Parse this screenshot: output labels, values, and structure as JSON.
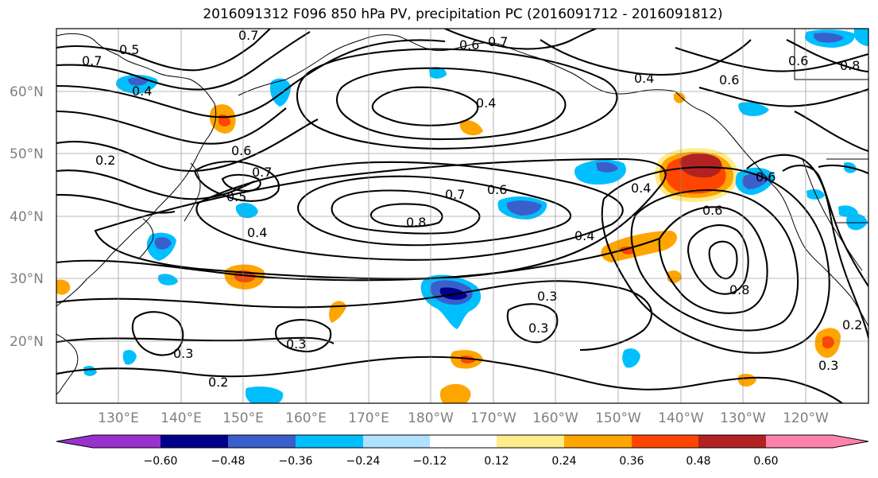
{
  "title": "2016091312 F096 850 hPa PV, precipitation PC (2016091712 - 2016091812)",
  "map": {
    "lat_ticks": [
      "60°N",
      "50°N",
      "40°N",
      "30°N",
      "20°N"
    ],
    "lon_ticks": [
      "130°E",
      "140°E",
      "150°E",
      "160°E",
      "170°E",
      "180°W",
      "170°W",
      "160°W",
      "150°W",
      "140°W",
      "130°W",
      "120°W"
    ],
    "contour_labels": [
      "0.7",
      "0.5",
      "0.7",
      "0.4",
      "0.6",
      "0.7",
      "0.4",
      "0.6",
      "0.4",
      "0.8",
      "0.6",
      "0.2",
      "0.6",
      "0.7",
      "0.5",
      "0.4",
      "0.7",
      "0.8",
      "0.6",
      "0.4",
      "0.4",
      "0.6",
      "0.6",
      "0.3",
      "0.3",
      "0.3",
      "0.3",
      "0.2",
      "0.8",
      "0.2",
      "0.3"
    ]
  },
  "colorbar": {
    "colors": [
      "#9932cc",
      "#00008b",
      "#3a5fcd",
      "#00bfff",
      "#b0e2ff",
      "#ffffff",
      "#ffec8b",
      "#ffa500",
      "#ff4500",
      "#b22222",
      "#ff82ab"
    ],
    "tick_labels": [
      "−0.60",
      "−0.48",
      "−0.36",
      "−0.24",
      "−0.12",
      "0.12",
      "0.24",
      "0.36",
      "0.48",
      "0.60"
    ]
  }
}
